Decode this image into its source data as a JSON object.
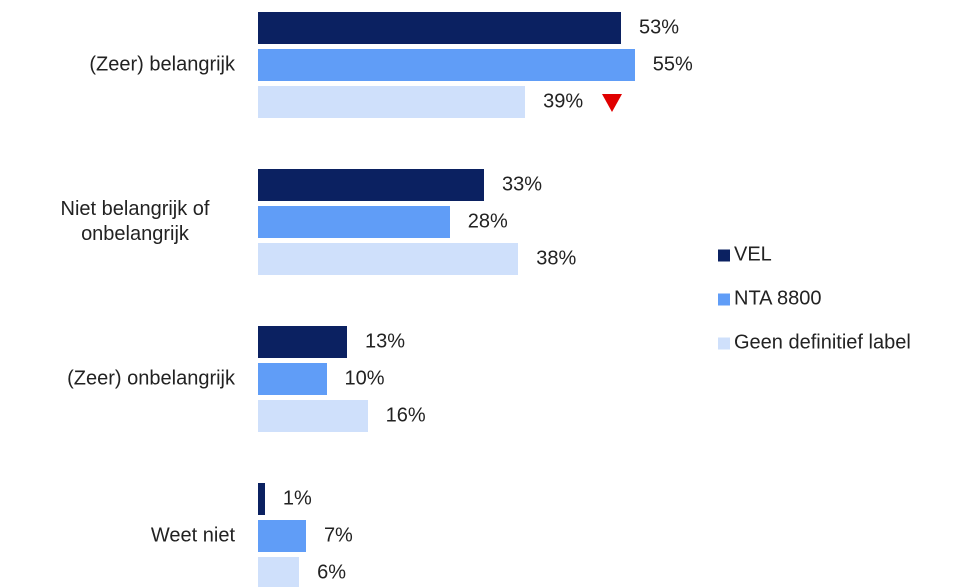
{
  "chart_data": {
    "type": "bar",
    "orientation": "horizontal",
    "categories": [
      "(Zeer) belangrijk",
      "Niet belangrijk of onbelangrijk",
      "(Zeer) onbelangrijk",
      "Weet niet"
    ],
    "series": [
      {
        "name": "VEL",
        "color": "#0b2161",
        "values": [
          53,
          33,
          13,
          1
        ],
        "value_labels": [
          "53%",
          "33%",
          "13%",
          "1%"
        ]
      },
      {
        "name": "NTA 8800",
        "color": "#609df7",
        "values": [
          55,
          28,
          10,
          7
        ],
        "value_labels": [
          "55%",
          "28%",
          "10%",
          "7%"
        ]
      },
      {
        "name": "Geen definitief label",
        "color": "#cfe0fb",
        "values": [
          39,
          38,
          16,
          6
        ],
        "value_labels": [
          "39%",
          "38%",
          "16%",
          "6%"
        ]
      }
    ],
    "legend": "right"
  }
}
